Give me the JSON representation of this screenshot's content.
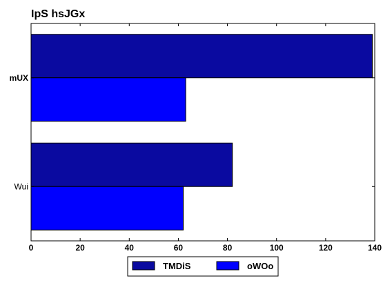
{
  "chart_data": {
    "type": "bar",
    "orientation": "horizontal",
    "title": "IpS  hsJGx",
    "xlabel": "",
    "ylabel": "",
    "categories": [
      "mUX",
      "Wui"
    ],
    "category_bold": [
      true,
      false
    ],
    "series": [
      {
        "name": "TMDiS",
        "color": "#0a0aa0",
        "values": [
          139,
          82
        ]
      },
      {
        "name": "oWOo",
        "color": "#0000ff",
        "values": [
          63,
          62
        ]
      }
    ],
    "xlim": [
      0,
      140
    ],
    "xticks": [
      0,
      20,
      40,
      60,
      80,
      100,
      120,
      140
    ],
    "grid": false,
    "legend": {
      "placement": "bottom-center"
    }
  }
}
